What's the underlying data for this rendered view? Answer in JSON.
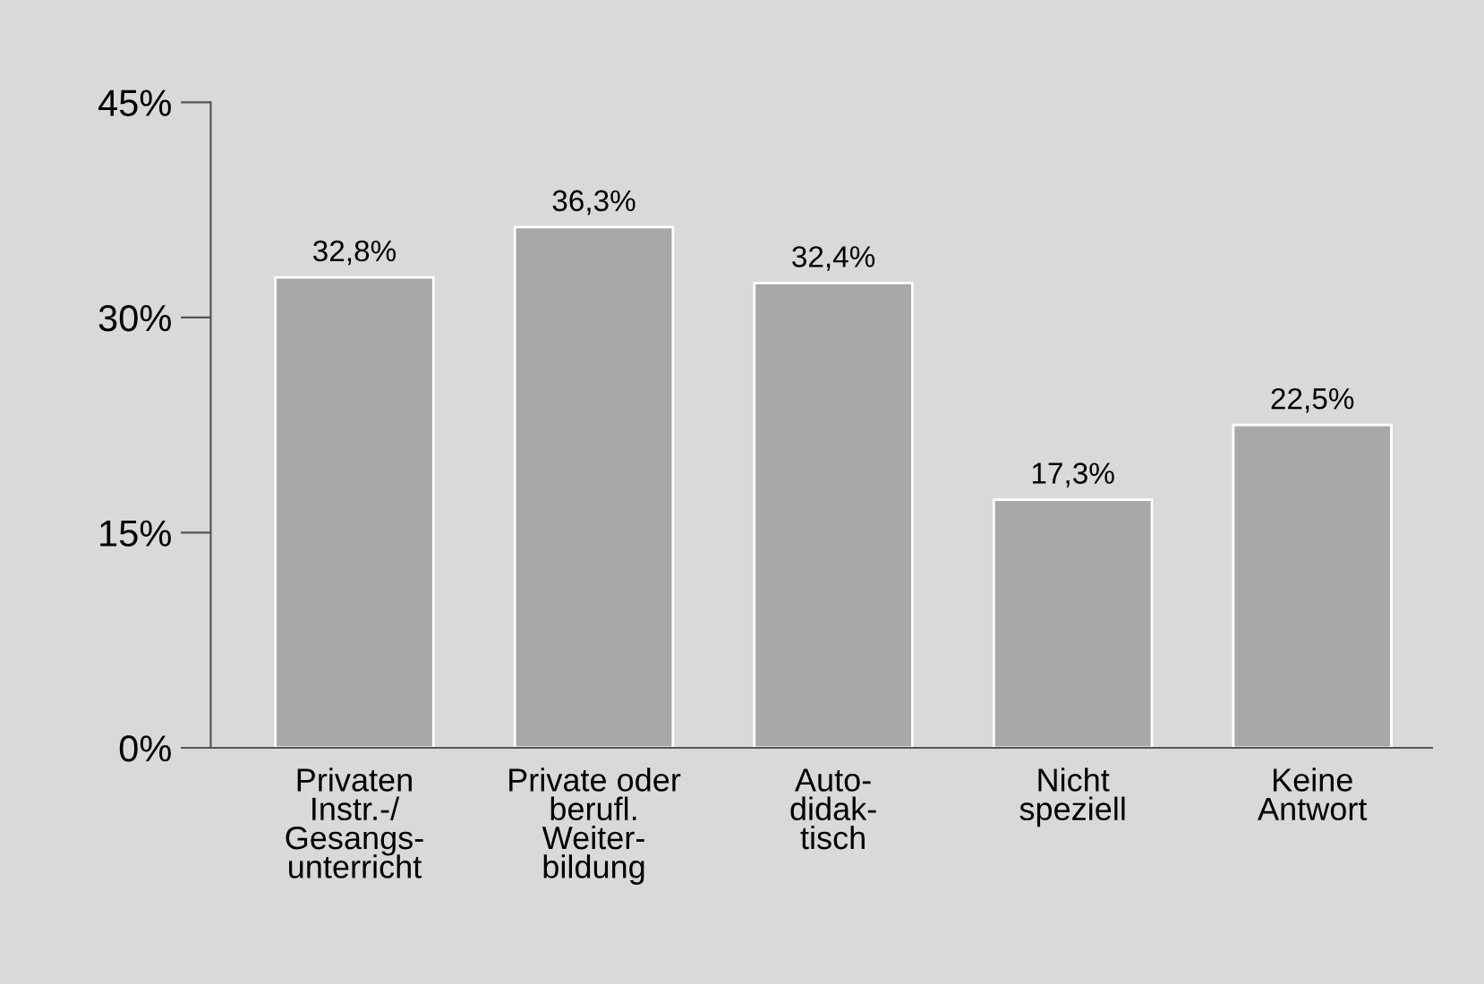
{
  "chart_data": {
    "type": "bar",
    "categories": [
      "Privaten\nInstr.-/\nGesangs-\nunterricht",
      "Private oder\nberufl.\nWeiter-\nbildung",
      "Auto-\ndidak-\ntisch",
      "Nicht\nspeziell",
      "Keine\nAntwort"
    ],
    "values": [
      32.8,
      36.3,
      32.4,
      17.3,
      22.5
    ],
    "value_labels": [
      "32,8%",
      "36,3%",
      "32,4%",
      "17,3%",
      "22,5%"
    ],
    "color": "#a8a8a8",
    "ylim": [
      0,
      45
    ],
    "yticks": [
      {
        "value": 0,
        "label": "0%"
      },
      {
        "value": 15,
        "label": "15%"
      },
      {
        "value": 30,
        "label": "30%"
      },
      {
        "value": 45,
        "label": "45%"
      }
    ],
    "grid": false
  }
}
